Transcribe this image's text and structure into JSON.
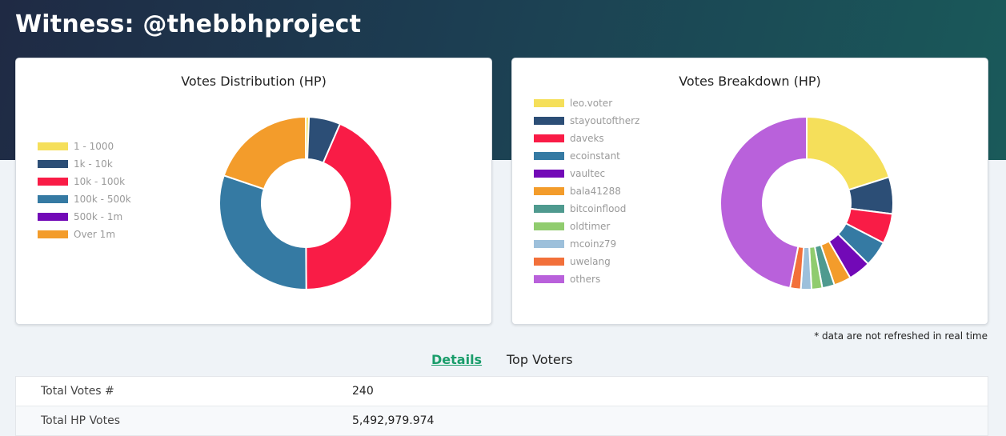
{
  "page": {
    "title": "Witness: @thebbhproject"
  },
  "colors": {
    "header_bg_start": "#1f2a44",
    "header_bg_end": "#1a5a5a",
    "tab_active": "#1a9d6b"
  },
  "votes_distribution": {
    "title": "Votes Distribution (HP)",
    "legend": [
      {
        "label": "1 - 1000",
        "color": "#f5df5a"
      },
      {
        "label": "1k - 10k",
        "color": "#2c4e76"
      },
      {
        "label": "10k - 100k",
        "color": "#f91c46"
      },
      {
        "label": "100k - 500k",
        "color": "#357aa3"
      },
      {
        "label": "500k - 1m",
        "color": "#7209b7"
      },
      {
        "label": "Over 1m",
        "color": "#f39c2b"
      }
    ]
  },
  "votes_breakdown": {
    "title": "Votes Breakdown (HP)",
    "legend": [
      {
        "label": "leo.voter",
        "color": "#f5df5a"
      },
      {
        "label": "stayoutoftherz",
        "color": "#2c4e76"
      },
      {
        "label": "daveks",
        "color": "#f91c46"
      },
      {
        "label": "ecoinstant",
        "color": "#357aa3"
      },
      {
        "label": "vaultec",
        "color": "#7209b7"
      },
      {
        "label": "bala41288",
        "color": "#f39c2b"
      },
      {
        "label": "bitcoinflood",
        "color": "#4f9a8f"
      },
      {
        "label": "oldtimer",
        "color": "#90cc6e"
      },
      {
        "label": "mcoinz79",
        "color": "#9dc0db"
      },
      {
        "label": "uwelang",
        "color": "#f2703a"
      },
      {
        "label": "others",
        "color": "#b961db"
      }
    ]
  },
  "chart_data": [
    {
      "type": "pie",
      "title": "Votes Distribution (HP)",
      "categories": [
        "1 - 1000",
        "1k - 10k",
        "10k - 100k",
        "100k - 500k",
        "500k - 1m",
        "Over 1m"
      ],
      "values": [
        0.6,
        5.9,
        43.4,
        30.3,
        0,
        19.8
      ],
      "unit": "% of HP (estimated)",
      "legend": "left"
    },
    {
      "type": "pie",
      "title": "Votes Breakdown (HP)",
      "categories": [
        "leo.voter",
        "stayoutoftherz",
        "daveks",
        "ecoinstant",
        "vaultec",
        "bala41288",
        "bitcoinflood",
        "oldtimer",
        "mcoinz79",
        "uwelang",
        "others"
      ],
      "values": [
        20.1,
        6.9,
        5.6,
        4.8,
        4.2,
        3.2,
        2.3,
        2.0,
        2.0,
        2.0,
        46.9
      ],
      "unit": "% of HP (estimated)",
      "legend": "left"
    }
  ],
  "footnote": "* data are not refreshed in real time",
  "tabs": {
    "details": "Details",
    "top_voters": "Top Voters"
  },
  "details": {
    "rows": [
      {
        "label": "Total Votes #",
        "value": "240"
      },
      {
        "label": "Total HP Votes",
        "value": "5,492,979.974"
      }
    ]
  }
}
